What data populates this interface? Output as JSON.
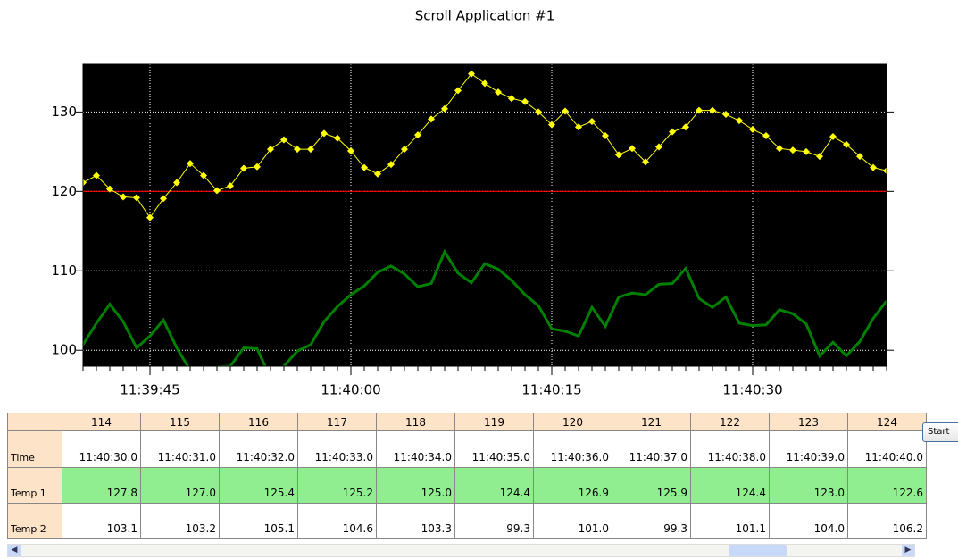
{
  "chart_data": {
    "type": "line",
    "title": "Scroll Application #1",
    "x": [
      "11:39:40",
      "11:39:41",
      "11:39:42",
      "11:39:43",
      "11:39:44",
      "11:39:45",
      "11:39:46",
      "11:39:47",
      "11:39:48",
      "11:39:49",
      "11:39:50",
      "11:39:51",
      "11:39:52",
      "11:39:53",
      "11:39:54",
      "11:39:55",
      "11:39:56",
      "11:39:57",
      "11:39:58",
      "11:39:59",
      "11:40:00",
      "11:40:01",
      "11:40:02",
      "11:40:03",
      "11:40:04",
      "11:40:05",
      "11:40:06",
      "11:40:07",
      "11:40:08",
      "11:40:09",
      "11:40:10",
      "11:40:11",
      "11:40:12",
      "11:40:13",
      "11:40:14",
      "11:40:15",
      "11:40:16",
      "11:40:17",
      "11:40:18",
      "11:40:19",
      "11:40:20",
      "11:40:21",
      "11:40:22",
      "11:40:23",
      "11:40:24",
      "11:40:25",
      "11:40:26",
      "11:40:27",
      "11:40:28",
      "11:40:29",
      "11:40:30",
      "11:40:31",
      "11:40:32",
      "11:40:33",
      "11:40:34",
      "11:40:35",
      "11:40:36",
      "11:40:37",
      "11:40:38",
      "11:40:39",
      "11:40:40"
    ],
    "series": [
      {
        "name": "Temp 1",
        "color": "#ffff00",
        "marker": "diamond",
        "values": [
          121.1,
          122.0,
          120.3,
          119.3,
          119.2,
          116.7,
          119.1,
          121.1,
          123.5,
          122.0,
          120.1,
          120.7,
          122.9,
          123.1,
          125.3,
          126.5,
          125.3,
          125.3,
          127.3,
          126.7,
          125.1,
          123.0,
          122.2,
          123.4,
          125.3,
          127.1,
          129.1,
          130.4,
          132.7,
          134.8,
          133.6,
          132.5,
          131.7,
          131.3,
          130.0,
          128.4,
          130.1,
          128.1,
          128.8,
          127.0,
          124.6,
          125.4,
          123.7,
          125.6,
          127.5,
          128.1,
          130.2,
          130.2,
          129.7,
          128.9,
          127.8,
          127.0,
          125.4,
          125.2,
          125.0,
          124.4,
          126.9,
          125.9,
          124.4,
          123.0,
          122.6
        ]
      },
      {
        "name": "Temp 2",
        "color": "#008000",
        "values": [
          100.7,
          103.4,
          105.8,
          103.6,
          100.3,
          101.8,
          103.8,
          100.3,
          97.5,
          96.0,
          97.9,
          98.0,
          100.3,
          100.2,
          96.5,
          98.0,
          99.9,
          100.7,
          103.6,
          105.5,
          107.0,
          108.1,
          109.8,
          110.6,
          109.6,
          108.0,
          108.4,
          112.4,
          109.7,
          108.5,
          110.9,
          110.2,
          108.8,
          107.0,
          105.6,
          102.7,
          102.4,
          101.8,
          105.4,
          103.0,
          106.7,
          107.2,
          107.0,
          108.3,
          108.4,
          110.3,
          106.5,
          105.4,
          106.7,
          103.4,
          103.1,
          103.2,
          105.1,
          104.6,
          103.3,
          99.3,
          101.0,
          99.3,
          101.1,
          104.0,
          106.2
        ]
      }
    ],
    "xlim": [
      "11:39:40",
      "11:40:40"
    ],
    "xticks": [
      "11:39:45",
      "11:40:00",
      "11:40:15",
      "11:40:30"
    ],
    "ylim": [
      98,
      136
    ],
    "yticks": [
      100,
      110,
      120,
      130
    ],
    "grid": true,
    "hline": {
      "value": 120,
      "color": "#ff0000"
    }
  },
  "table": {
    "columns": [
      "114",
      "115",
      "116",
      "117",
      "118",
      "119",
      "120",
      "121",
      "122",
      "123",
      "124"
    ],
    "rows": [
      {
        "label": "Time",
        "cells": [
          "11:40:30.0",
          "11:40:31.0",
          "11:40:32.0",
          "11:40:33.0",
          "11:40:34.0",
          "11:40:35.0",
          "11:40:36.0",
          "11:40:37.0",
          "11:40:38.0",
          "11:40:39.0",
          "11:40:40.0"
        ]
      },
      {
        "label": "Temp 1",
        "cells": [
          "127.8",
          "127.0",
          "125.4",
          "125.2",
          "125.0",
          "124.4",
          "126.9",
          "125.9",
          "124.4",
          "123.0",
          "122.6"
        ]
      },
      {
        "label": "Temp 2",
        "cells": [
          "103.1",
          "103.2",
          "105.1",
          "104.6",
          "103.3",
          "99.3",
          "101.0",
          "99.3",
          "101.1",
          "104.0",
          "106.2"
        ]
      }
    ]
  },
  "button": {
    "label": "Start"
  }
}
